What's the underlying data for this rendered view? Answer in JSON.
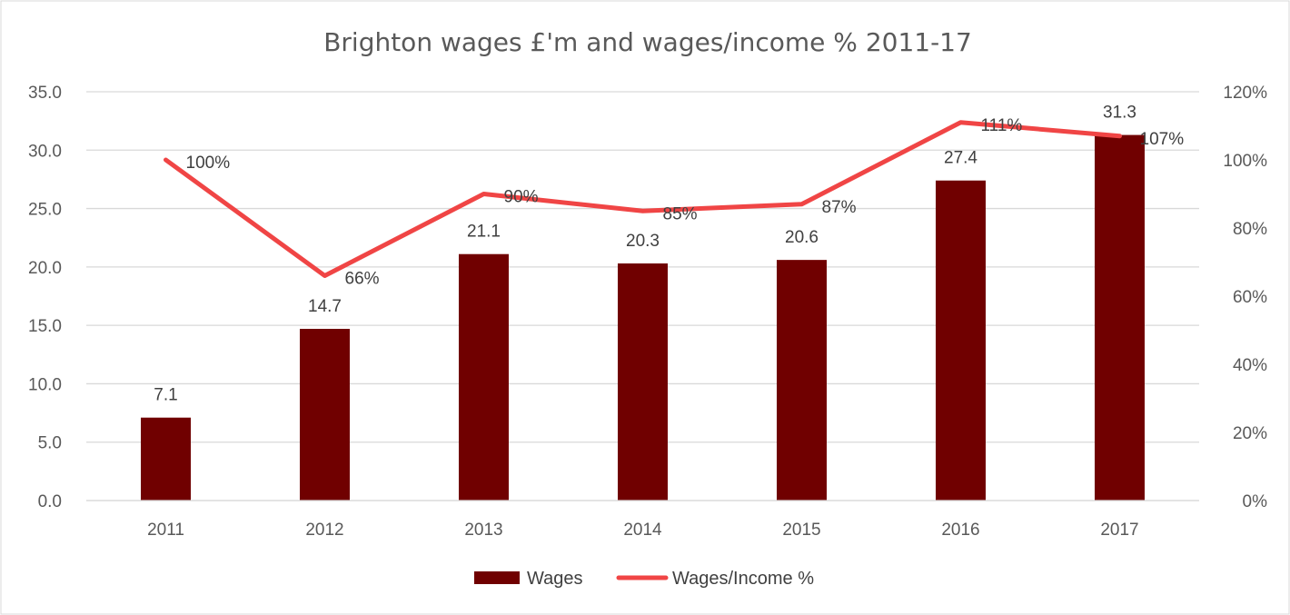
{
  "chart_data": {
    "type": "bar",
    "title": "Brighton wages £'m and wages/income % 2011-17",
    "categories": [
      "2011",
      "2012",
      "2013",
      "2014",
      "2015",
      "2016",
      "2017"
    ],
    "series": [
      {
        "name": "Wages",
        "type": "bar",
        "axis": "left",
        "values": [
          7.1,
          14.7,
          21.1,
          20.3,
          20.6,
          27.4,
          31.3
        ],
        "labels": [
          "7.1",
          "14.7",
          "21.1",
          "20.3",
          "20.6",
          "27.4",
          "31.3"
        ],
        "color": "#700000"
      },
      {
        "name": "Wages/Income %",
        "type": "line",
        "axis": "right",
        "values": [
          100,
          66,
          90,
          85,
          87,
          111,
          107
        ],
        "labels": [
          "100%",
          "66%",
          "90%",
          "85%",
          "87%",
          "111%",
          "107%"
        ],
        "color": "#f04545"
      }
    ],
    "y_left": {
      "ylim": [
        0,
        35
      ],
      "ticks": [
        "0.0",
        "5.0",
        "10.0",
        "15.0",
        "20.0",
        "25.0",
        "30.0",
        "35.0"
      ]
    },
    "y_right": {
      "ylim": [
        0,
        120
      ],
      "ticks": [
        "0%",
        "20%",
        "40%",
        "60%",
        "80%",
        "100%",
        "120%"
      ]
    },
    "grid": true,
    "legend_position": "bottom"
  }
}
